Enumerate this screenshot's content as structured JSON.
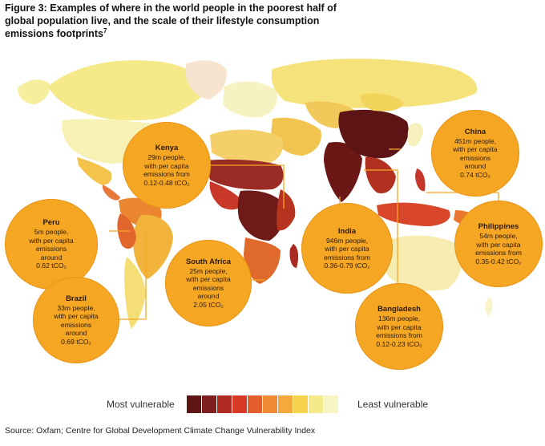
{
  "title": {
    "line1": "Figure 3: Examples of where in the world people in the poorest half of",
    "line2": "global population live, and the scale of their lifestyle consumption",
    "line3": "emissions footprints",
    "footnote": "7"
  },
  "callouts": {
    "kenya": {
      "name": "Kenya",
      "l1": "29m people,",
      "l2": "with per capita",
      "l3": "emissions from",
      "l4": "0.12-0.48 tCO₂"
    },
    "china": {
      "name": "China",
      "l1": "451m people,",
      "l2": "with per capita",
      "l3": "emissions",
      "l4": "around",
      "l5": "0.74 tCO₂"
    },
    "peru": {
      "name": "Peru",
      "l1": "5m people,",
      "l2": "with per capita",
      "l3": "emissions",
      "l4": "around",
      "l5": "0.62 tCO₂"
    },
    "india": {
      "name": "India",
      "l1": "946m people,",
      "l2": "with per capita",
      "l3": "emissions from",
      "l4": "0.36-0.79 tCO₂"
    },
    "philippines": {
      "name": "Philippines",
      "l1": "54m people,",
      "l2": "with per capita",
      "l3": "emissions from",
      "l4": "0.35-0.42 tCO₂"
    },
    "south_africa": {
      "name": "South Africa",
      "l1": "25m people,",
      "l2": "with per capita",
      "l3": "emissions",
      "l4": "around",
      "l5": "2.05 tCO₂"
    },
    "brazil": {
      "name": "Brazil",
      "l1": "33m people,",
      "l2": "with per capita",
      "l3": "emissions",
      "l4": "around",
      "l5": "0.69 tCO₂"
    },
    "bangladesh": {
      "name": "Bangladesh",
      "l1": "136m people,",
      "l2": "with per capita",
      "l3": "emissions from",
      "l4": "0.12-0.23 tCO₂"
    }
  },
  "legend": {
    "most": "Most vulnerable",
    "least": "Least vulnerable",
    "colors": [
      "#5c1414",
      "#7e1e1e",
      "#b02a24",
      "#d83a28",
      "#e65d2c",
      "#f08a33",
      "#f5a93d",
      "#f6d34a",
      "#f4ea8a",
      "#f6f3c4"
    ]
  },
  "source": "Source: Oxfam; Centre for Global Development Climate Change Vulnerability Index",
  "colors": {
    "bubble": "#f5a623",
    "ocean": "#ffffff"
  }
}
